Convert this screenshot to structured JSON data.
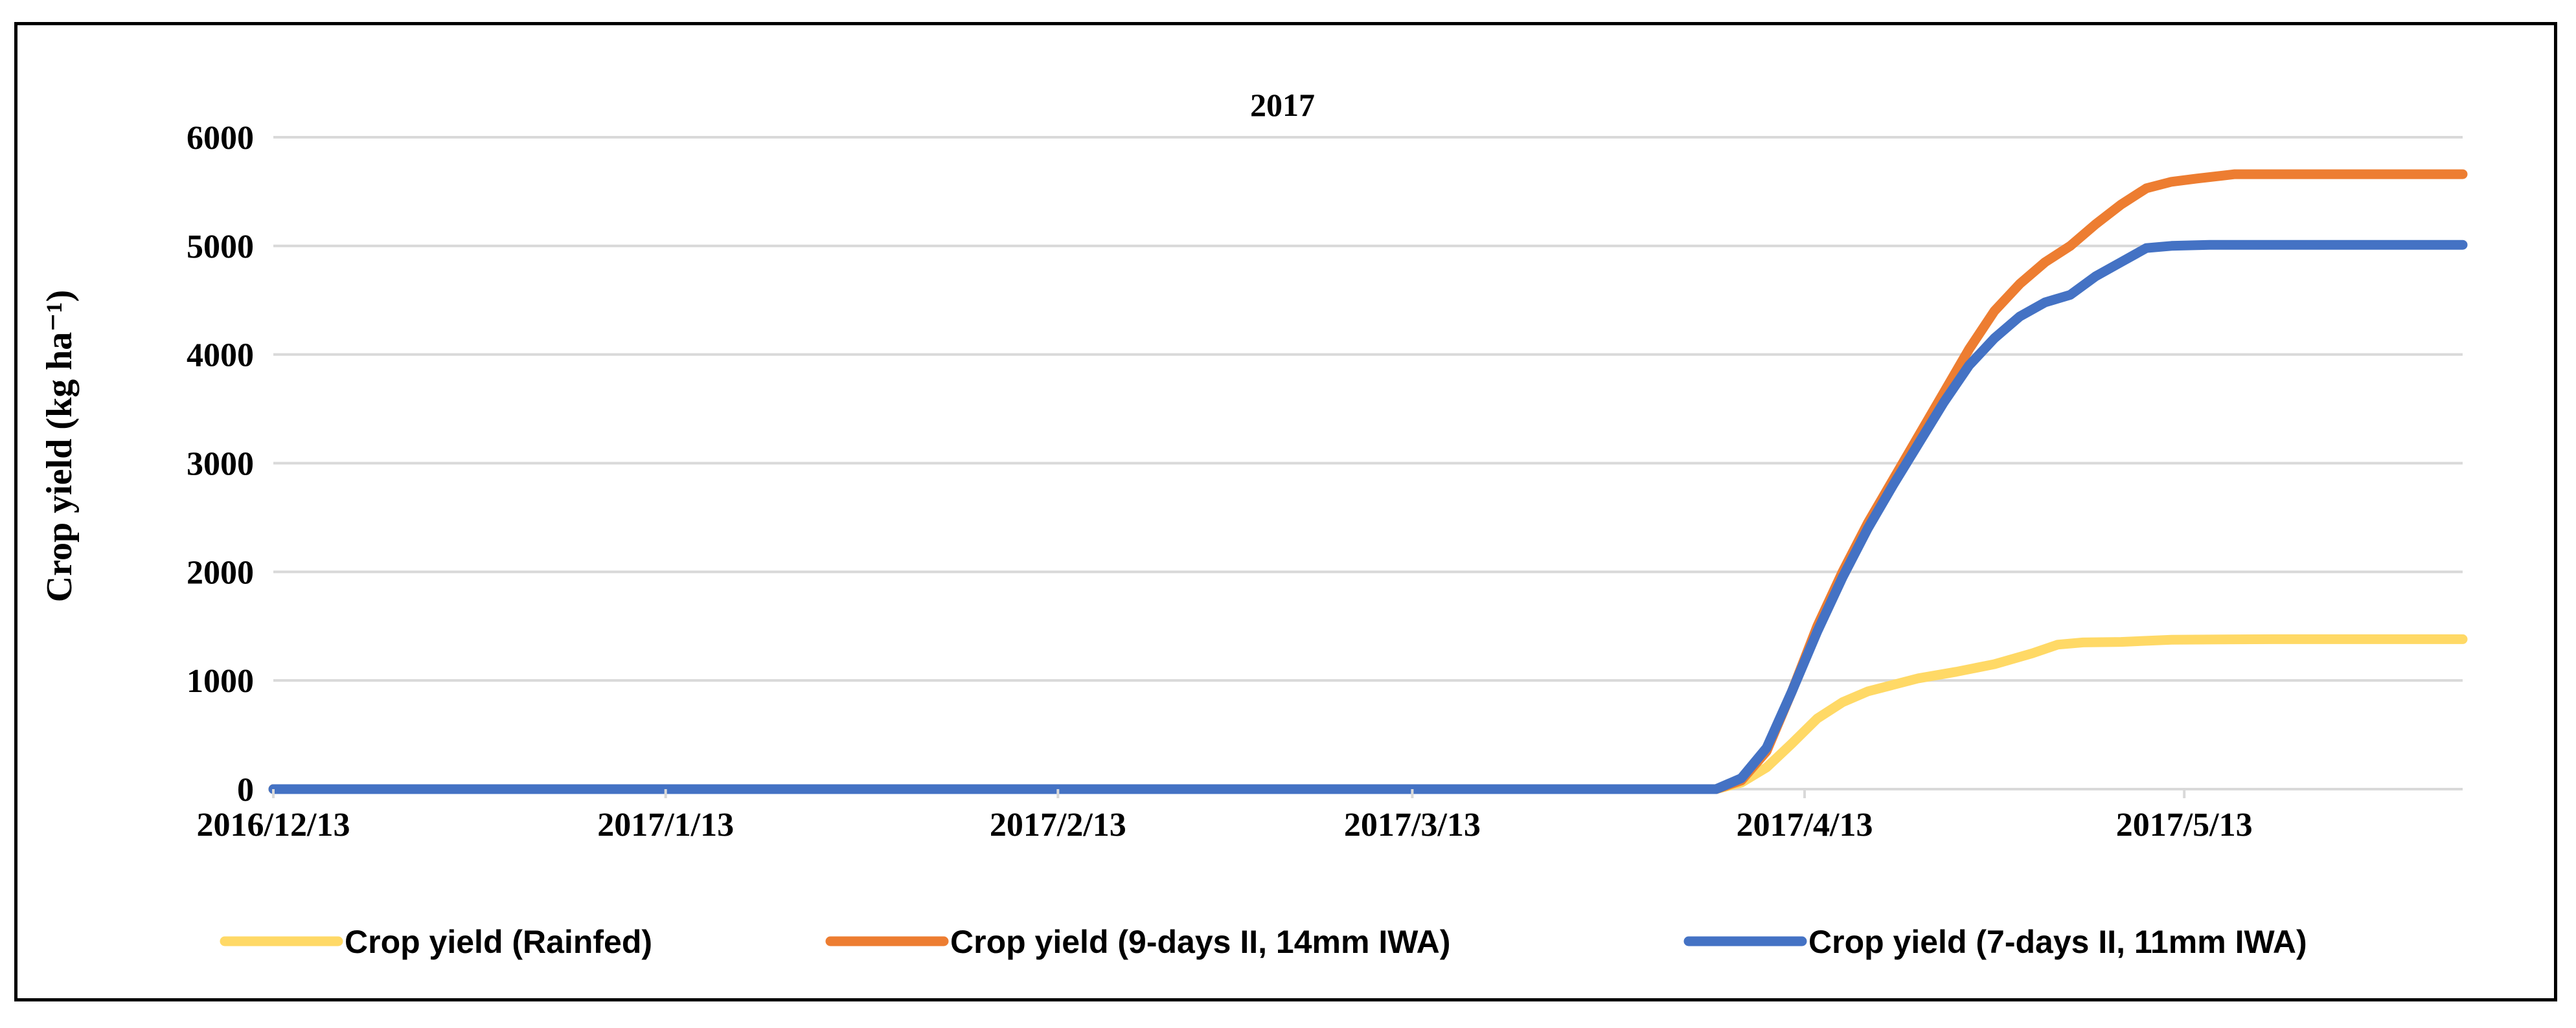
{
  "chart_data": {
    "type": "line",
    "title": "2017",
    "xlabel": "",
    "ylabel": "Crop yield (kg ha⁻¹)",
    "ylim": [
      0,
      6000
    ],
    "yticks": [
      0,
      1000,
      2000,
      3000,
      4000,
      5000,
      6000
    ],
    "xlim": [
      "2016-12-13",
      "2017-06-04"
    ],
    "xticks": [
      {
        "date": "2016-12-13",
        "label": "2016/12/13"
      },
      {
        "date": "2017-01-13",
        "label": "2017/1/13"
      },
      {
        "date": "2017-02-13",
        "label": "2017/2/13"
      },
      {
        "date": "2017-03-13",
        "label": "2017/3/13"
      },
      {
        "date": "2017-04-13",
        "label": "2017/4/13"
      },
      {
        "date": "2017-05-13",
        "label": "2017/5/13"
      }
    ],
    "grid": true,
    "legend_position": "bottom",
    "series": [
      {
        "name": "Crop yield (Rainfed)",
        "color": "#FFD966",
        "points": [
          [
            "2016-12-13",
            0
          ],
          [
            "2017-04-06",
            0
          ],
          [
            "2017-04-08",
            60
          ],
          [
            "2017-04-10",
            200
          ],
          [
            "2017-04-12",
            420
          ],
          [
            "2017-04-14",
            650
          ],
          [
            "2017-04-16",
            800
          ],
          [
            "2017-04-18",
            900
          ],
          [
            "2017-04-20",
            960
          ],
          [
            "2017-04-22",
            1020
          ],
          [
            "2017-04-25",
            1080
          ],
          [
            "2017-04-28",
            1150
          ],
          [
            "2017-05-01",
            1250
          ],
          [
            "2017-05-03",
            1330
          ],
          [
            "2017-05-05",
            1350
          ],
          [
            "2017-05-08",
            1355
          ],
          [
            "2017-05-12",
            1375
          ],
          [
            "2017-05-20",
            1380
          ],
          [
            "2017-06-04",
            1380
          ]
        ]
      },
      {
        "name": "Crop yield (9-days II, 14mm IWA)",
        "color": "#ED7D31",
        "points": [
          [
            "2016-12-13",
            0
          ],
          [
            "2017-04-06",
            0
          ],
          [
            "2017-04-08",
            80
          ],
          [
            "2017-04-10",
            350
          ],
          [
            "2017-04-12",
            900
          ],
          [
            "2017-04-14",
            1500
          ],
          [
            "2017-04-16",
            2000
          ],
          [
            "2017-04-18",
            2450
          ],
          [
            "2017-04-20",
            2850
          ],
          [
            "2017-04-22",
            3250
          ],
          [
            "2017-04-24",
            3650
          ],
          [
            "2017-04-26",
            4050
          ],
          [
            "2017-04-28",
            4400
          ],
          [
            "2017-04-30",
            4650
          ],
          [
            "2017-05-02",
            4850
          ],
          [
            "2017-05-04",
            5000
          ],
          [
            "2017-05-06",
            5200
          ],
          [
            "2017-05-08",
            5380
          ],
          [
            "2017-05-10",
            5530
          ],
          [
            "2017-05-12",
            5590
          ],
          [
            "2017-05-14",
            5620
          ],
          [
            "2017-05-17",
            5660
          ],
          [
            "2017-06-04",
            5660
          ]
        ]
      },
      {
        "name": "Crop yield (7-days II, 11mm IWA)",
        "color": "#4472C4",
        "points": [
          [
            "2016-12-13",
            0
          ],
          [
            "2017-04-06",
            0
          ],
          [
            "2017-04-08",
            100
          ],
          [
            "2017-04-10",
            380
          ],
          [
            "2017-04-12",
            900
          ],
          [
            "2017-04-14",
            1450
          ],
          [
            "2017-04-16",
            1950
          ],
          [
            "2017-04-18",
            2400
          ],
          [
            "2017-04-20",
            2800
          ],
          [
            "2017-04-22",
            3180
          ],
          [
            "2017-04-24",
            3560
          ],
          [
            "2017-04-26",
            3900
          ],
          [
            "2017-04-28",
            4150
          ],
          [
            "2017-04-30",
            4350
          ],
          [
            "2017-05-02",
            4480
          ],
          [
            "2017-05-04",
            4550
          ],
          [
            "2017-05-06",
            4720
          ],
          [
            "2017-05-08",
            4850
          ],
          [
            "2017-05-10",
            4980
          ],
          [
            "2017-05-12",
            5000
          ],
          [
            "2017-05-15",
            5010
          ],
          [
            "2017-06-04",
            5010
          ]
        ]
      }
    ]
  }
}
